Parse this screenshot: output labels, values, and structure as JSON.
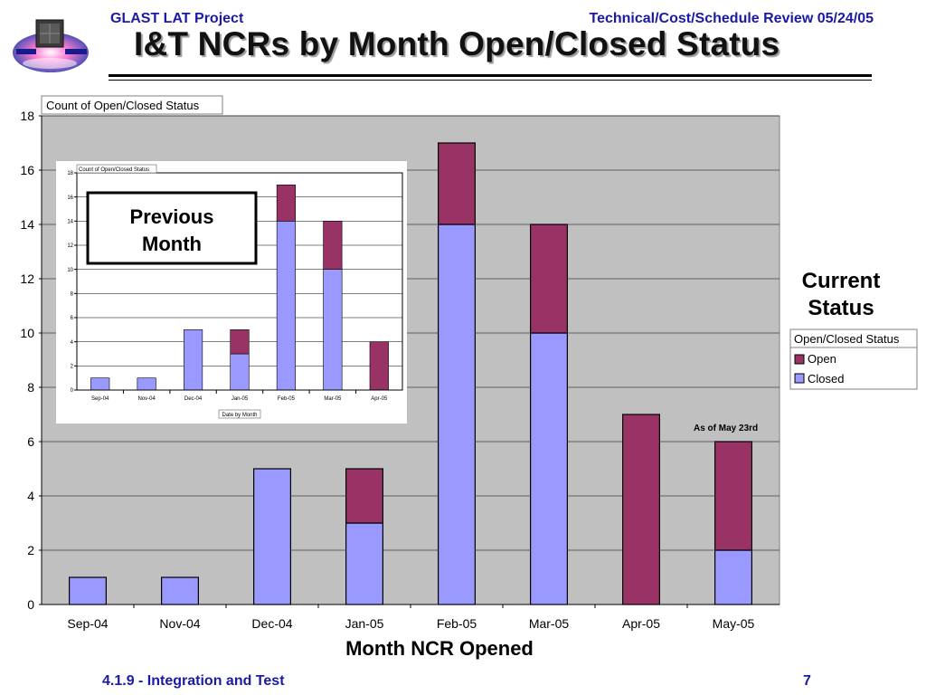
{
  "header": {
    "project": "GLAST LAT Project",
    "review": "Technical/Cost/Schedule Review 05/24/05",
    "title": "I&T NCRs by Month Open/Closed Status"
  },
  "footer": {
    "section": "4.1.9 - Integration and Test",
    "page": "7"
  },
  "colors": {
    "open": "#993366",
    "closed": "#9999ff",
    "plot_bg": "#c0c0c0",
    "header_text": "#1a1aa6"
  },
  "logo": {
    "icon": "glast-satellite-logo"
  },
  "chart_data": [
    {
      "type": "bar",
      "stacked": true,
      "title": "Count of Open/Closed Status",
      "xlabel": "Month NCR Opened",
      "ylabel": "",
      "ylim": [
        0,
        18
      ],
      "yticks": [
        0,
        2,
        4,
        6,
        8,
        10,
        12,
        14,
        16,
        18
      ],
      "categories": [
        "Sep-04",
        "Nov-04",
        "Dec-04",
        "Jan-05",
        "Feb-05",
        "Mar-05",
        "Apr-05",
        "May-05"
      ],
      "series": [
        {
          "name": "Closed",
          "values": [
            1,
            1,
            5,
            3,
            14,
            10,
            0,
            2
          ]
        },
        {
          "name": "Open",
          "values": [
            0,
            0,
            0,
            2,
            3,
            4,
            7,
            4
          ]
        }
      ],
      "grid": true,
      "legend": {
        "title": "Open/Closed Status",
        "position": "right",
        "entries": [
          "Open",
          "Closed"
        ]
      },
      "annotations": [
        "Current Status",
        "As of May 23rd"
      ]
    },
    {
      "type": "bar",
      "stacked": true,
      "title": "Count of Open/Closed Status",
      "xlabel": "Date by Month",
      "ylabel": "",
      "ylim": [
        0,
        18
      ],
      "yticks": [
        0,
        2,
        4,
        6,
        8,
        10,
        12,
        14,
        16,
        18
      ],
      "categories": [
        "Sep-04",
        "Nov-04",
        "Dec-04",
        "Jan-05",
        "Feb-05",
        "Mar-05",
        "Apr-05"
      ],
      "series": [
        {
          "name": "Closed",
          "values": [
            1,
            1,
            5,
            3,
            14,
            10,
            0
          ]
        },
        {
          "name": "Open",
          "values": [
            0,
            0,
            0,
            2,
            3,
            4,
            4
          ]
        }
      ],
      "grid": true,
      "annotations": [
        "Previous Month"
      ]
    }
  ],
  "callouts": {
    "previous_month": "Previous Month",
    "current_status": "Current Status",
    "as_of": "As of May 23rd"
  }
}
